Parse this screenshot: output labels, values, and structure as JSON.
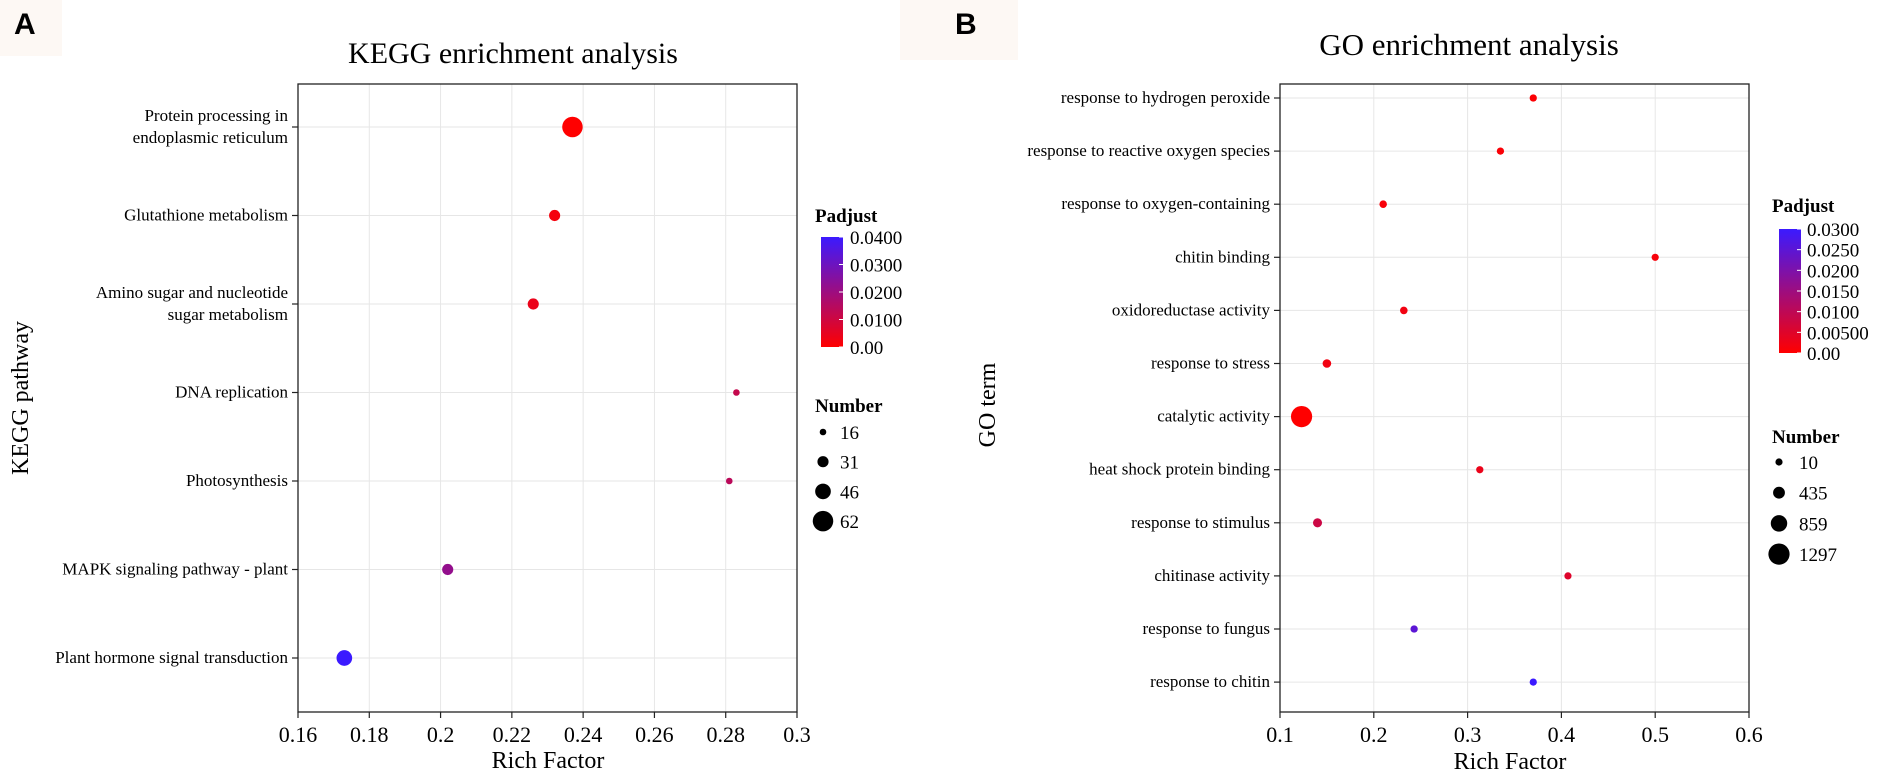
{
  "figure": {
    "panel_a_label": "A",
    "panel_b_label": "B"
  },
  "chart_data": [
    {
      "type": "scatter",
      "title": "KEGG enrichment analysis",
      "xlabel": "Rich Factor",
      "ylabel": "KEGG pathway",
      "xlim": [
        0.16,
        0.3
      ],
      "xticks": [
        "0.16",
        "0.18",
        "0.2",
        "0.22",
        "0.24",
        "0.26",
        "0.28",
        "0.3"
      ],
      "grid": true,
      "categories": [
        "Protein processing in\nendoplasmic reticulum",
        "Glutathione metabolism",
        "Amino sugar and nucleotide\nsugar metabolism",
        "DNA replication",
        "Photosynthesis",
        "MAPK signaling pathway - plant",
        "Plant hormone signal transduction"
      ],
      "points": [
        {
          "category": "Protein processing in endoplasmic reticulum",
          "rich_factor": 0.237,
          "number": 62,
          "padjust": 0.0
        },
        {
          "category": "Glutathione metabolism",
          "rich_factor": 0.232,
          "number": 31,
          "padjust": 0.002
        },
        {
          "category": "Amino sugar and nucleotide sugar metabolism",
          "rich_factor": 0.226,
          "number": 31,
          "padjust": 0.004
        },
        {
          "category": "DNA replication",
          "rich_factor": 0.283,
          "number": 16,
          "padjust": 0.012
        },
        {
          "category": "Photosynthesis",
          "rich_factor": 0.281,
          "number": 16,
          "padjust": 0.014
        },
        {
          "category": "MAPK signaling pathway - plant",
          "rich_factor": 0.202,
          "number": 31,
          "padjust": 0.022
        },
        {
          "category": "Plant hormone signal transduction",
          "rich_factor": 0.173,
          "number": 46,
          "padjust": 0.04
        }
      ],
      "color_legend": {
        "title": "Padjust",
        "labels": [
          "0.0400",
          "0.0300",
          "0.0200",
          "0.0100",
          "0.00"
        ],
        "range": [
          0,
          0.04
        ],
        "low_color": "#ff0000",
        "high_color": "#3b1aff"
      },
      "size_legend": {
        "title": "Number",
        "values": [
          16,
          31,
          46,
          62
        ]
      },
      "legend_position": "right"
    },
    {
      "type": "scatter",
      "title": "GO enrichment analysis",
      "xlabel": "Rich Factor",
      "ylabel": "GO term",
      "xlim": [
        0.1,
        0.6
      ],
      "xticks": [
        "0.1",
        "0.2",
        "0.3",
        "0.4",
        "0.5",
        "0.6"
      ],
      "grid": true,
      "categories": [
        "response to hydrogen peroxide",
        "response to reactive oxygen species",
        "response to oxygen-containing",
        "chitin binding",
        "oxidoreductase activity",
        "response to stress",
        "catalytic activity",
        "heat shock protein binding",
        "response to stimulus",
        "chitinase activity",
        "response to fungus",
        "response to chitin"
      ],
      "points": [
        {
          "category": "response to hydrogen peroxide",
          "rich_factor": 0.37,
          "number": 15,
          "padjust": 0.0005
        },
        {
          "category": "response to reactive oxygen species",
          "rich_factor": 0.335,
          "number": 18,
          "padjust": 0.0008
        },
        {
          "category": "response to oxygen-containing",
          "rich_factor": 0.21,
          "number": 40,
          "padjust": 0.001
        },
        {
          "category": "chitin binding",
          "rich_factor": 0.5,
          "number": 12,
          "padjust": 0.0012
        },
        {
          "category": "oxidoreductase activity",
          "rich_factor": 0.232,
          "number": 45,
          "padjust": 0.002
        },
        {
          "category": "response to stress",
          "rich_factor": 0.15,
          "number": 140,
          "padjust": 0.002
        },
        {
          "category": "catalytic activity",
          "rich_factor": 0.123,
          "number": 1297,
          "padjust": 0.0
        },
        {
          "category": "heat shock protein binding",
          "rich_factor": 0.313,
          "number": 14,
          "padjust": 0.003
        },
        {
          "category": "response to stimulus",
          "rich_factor": 0.14,
          "number": 180,
          "padjust": 0.008
        },
        {
          "category": "chitinase activity",
          "rich_factor": 0.407,
          "number": 11,
          "padjust": 0.005
        },
        {
          "category": "response to fungus",
          "rich_factor": 0.243,
          "number": 20,
          "padjust": 0.025
        },
        {
          "category": "response to chitin",
          "rich_factor": 0.37,
          "number": 12,
          "padjust": 0.03
        }
      ],
      "color_legend": {
        "title": "Padjust",
        "labels": [
          "0.0300",
          "0.0250",
          "0.0200",
          "0.0150",
          "0.0100",
          "0.00500",
          "0.00"
        ],
        "range": [
          0,
          0.03
        ],
        "low_color": "#ff0000",
        "high_color": "#3b1aff"
      },
      "size_legend": {
        "title": "Number",
        "values": [
          10,
          435,
          859,
          1297
        ]
      },
      "legend_position": "right"
    }
  ]
}
